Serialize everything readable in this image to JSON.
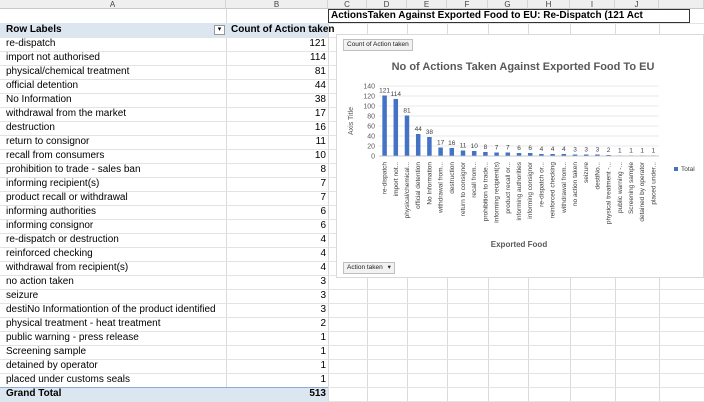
{
  "columns": [
    "A",
    "B",
    "C",
    "D",
    "E",
    "F",
    "G",
    "H",
    "I",
    "J"
  ],
  "title_cell": "ActionsTaken Against Exported Food to EU: Re-Dispatch (121 Act",
  "pivot": {
    "header_label": "Row Labels",
    "header_value": "Count of Action taken",
    "rows": [
      {
        "label": "re-dispatch",
        "value": "121"
      },
      {
        "label": "import not authorised",
        "value": "114"
      },
      {
        "label": "physical/chemical treatment",
        "value": "81"
      },
      {
        "label": "official detention",
        "value": "44"
      },
      {
        "label": "No Information",
        "value": "38"
      },
      {
        "label": "withdrawal from the market",
        "value": "17"
      },
      {
        "label": "destruction",
        "value": "16"
      },
      {
        "label": "return to consignor",
        "value": "11"
      },
      {
        "label": "recall from consumers",
        "value": "10"
      },
      {
        "label": "prohibition to trade - sales ban",
        "value": "8"
      },
      {
        "label": "informing recipient(s)",
        "value": "7"
      },
      {
        "label": "product recall or withdrawal",
        "value": "7"
      },
      {
        "label": "informing authorities",
        "value": "6"
      },
      {
        "label": "informing consignor",
        "value": "6"
      },
      {
        "label": "re-dispatch or destruction",
        "value": "4"
      },
      {
        "label": "reinforced checking",
        "value": "4"
      },
      {
        "label": "withdrawal from recipient(s)",
        "value": "4"
      },
      {
        "label": "no action taken",
        "value": "3"
      },
      {
        "label": "seizure",
        "value": "3"
      },
      {
        "label": "destiNo Informationtion of the product identified",
        "value": "3"
      },
      {
        "label": "physical treatment - heat treatment",
        "value": "2"
      },
      {
        "label": "public warning - press release",
        "value": "1"
      },
      {
        "label": "Screening sample",
        "value": "1"
      },
      {
        "label": "detained by operator",
        "value": "1"
      },
      {
        "label": "placed under customs seals",
        "value": "1"
      }
    ],
    "total_label": "Grand Total",
    "total_value": "513"
  },
  "chart": {
    "field_button": "Count of Action taken",
    "filter_button": "Action taken",
    "filter_icon": "dropdown-triangle-icon",
    "legend_label": "Total"
  },
  "chart_data": {
    "type": "bar",
    "title": "No of Actions Taken Against Exported Food To EU",
    "xlabel": "Exported Food",
    "ylabel": "Axis Title",
    "ylim": [
      0,
      140
    ],
    "yticks": [
      "0",
      "20",
      "40",
      "60",
      "80",
      "100",
      "120",
      "140"
    ],
    "categories": [
      "re-dispatch",
      "import not...",
      "physical/chemical...",
      "official detention",
      "No Information",
      "withdrawal from...",
      "destruction",
      "return to consignor",
      "recall from...",
      "prohibition to trade...",
      "informing recipient(s)",
      "product recall or...",
      "informing authorities",
      "informing consignor",
      "re-dispatch or...",
      "reinforced checking",
      "withdrawal from...",
      "no action taken",
      "seizure",
      "destiNo...",
      "physical treatment -...",
      "public warning -...",
      "Screening sample",
      "detained by operator",
      "placed under..."
    ],
    "series": [
      {
        "name": "Total",
        "values": [
          121,
          114,
          81,
          44,
          38,
          17,
          16,
          11,
          10,
          8,
          7,
          7,
          6,
          6,
          4,
          4,
          4,
          3,
          3,
          3,
          2,
          1,
          1,
          1,
          1
        ]
      }
    ],
    "data_labels": [
      "121",
      "114",
      "81",
      "44",
      "38",
      "17",
      "16",
      "11",
      "10",
      "8",
      "7",
      "7",
      "6",
      "6",
      "4",
      "4",
      "4",
      "3",
      "3",
      "3",
      "2",
      "1",
      "1",
      "1",
      "1"
    ],
    "colors": {
      "bar": "#4472c4",
      "grid": "#e3e3e3",
      "header_fill": "#dce6f1"
    },
    "legend": "right"
  }
}
